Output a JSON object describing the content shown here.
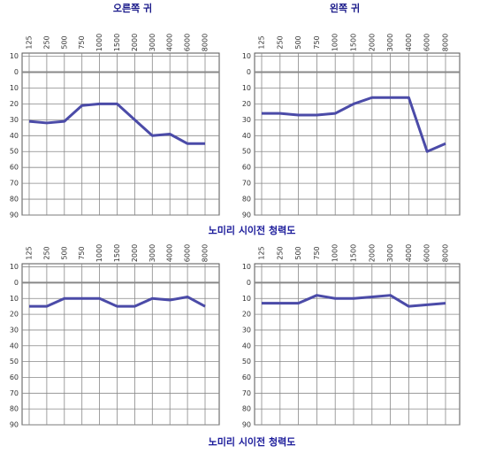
{
  "captions": [
    "노미리 시이전 청력도",
    "노미리 시이전 청력도"
  ],
  "chart_data": [
    {
      "type": "line",
      "title": "오른쪽 귀",
      "categories": [
        "125",
        "250",
        "500",
        "750",
        "1000",
        "1500",
        "2000",
        "3000",
        "4000",
        "6000",
        "8000"
      ],
      "series": [
        {
          "color": "#4b4ba8",
          "values": [
            31,
            32,
            31,
            21,
            20,
            20,
            30,
            40,
            39,
            45,
            45
          ]
        }
      ],
      "ylim": [
        -12,
        90
      ],
      "y_inverted": true,
      "grid": true,
      "yticks": [
        {
          "value": -10,
          "label": "10"
        },
        0,
        10,
        20,
        30,
        40,
        50,
        60,
        70,
        80,
        90
      ]
    },
    {
      "type": "line",
      "title": "왼쪽 귀",
      "categories": [
        "125",
        "250",
        "500",
        "750",
        "1000",
        "1500",
        "2000",
        "3000",
        "4000",
        "6000",
        "8000"
      ],
      "series": [
        {
          "color": "#4b4ba8",
          "values": [
            26,
            26,
            27,
            27,
            26,
            20,
            16,
            16,
            16,
            50,
            45
          ]
        }
      ],
      "ylim": [
        -12,
        90
      ],
      "y_inverted": true,
      "grid": true,
      "yticks": [
        {
          "value": -10,
          "label": "10"
        },
        0,
        10,
        20,
        30,
        40,
        50,
        60,
        70,
        80,
        90
      ]
    },
    {
      "type": "line",
      "categories": [
        "125",
        "250",
        "500",
        "750",
        "1000",
        "1500",
        "2000",
        "3000",
        "4000",
        "6000",
        "8000"
      ],
      "series": [
        {
          "color": "#4b4ba8",
          "values": [
            15,
            15,
            10,
            10,
            10,
            15,
            15,
            10,
            11,
            9,
            15
          ]
        }
      ],
      "ylim": [
        -12,
        90
      ],
      "y_inverted": true,
      "grid": true,
      "yticks": [
        {
          "value": -10,
          "label": "10"
        },
        0,
        10,
        20,
        30,
        40,
        50,
        60,
        70,
        80,
        90
      ]
    },
    {
      "type": "line",
      "categories": [
        "125",
        "250",
        "500",
        "750",
        "1000",
        "1500",
        "2000",
        "3000",
        "4000",
        "6000",
        "8000"
      ],
      "series": [
        {
          "color": "#4b4ba8",
          "values": [
            13,
            13,
            13,
            8,
            10,
            10,
            9,
            8,
            15,
            14,
            13
          ]
        }
      ],
      "ylim": [
        -12,
        90
      ],
      "y_inverted": true,
      "grid": true,
      "yticks": [
        {
          "value": -10,
          "label": "10"
        },
        0,
        10,
        20,
        30,
        40,
        50,
        60,
        70,
        80,
        90
      ]
    }
  ]
}
